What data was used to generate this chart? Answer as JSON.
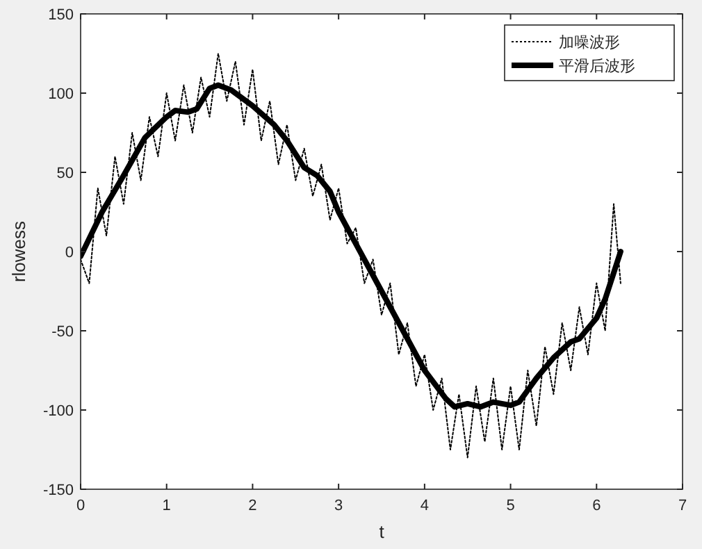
{
  "chart_data": {
    "type": "line",
    "xlabel": "t",
    "ylabel": "rlowess",
    "xlim": [
      0,
      7
    ],
    "xticks": [
      0,
      1,
      2,
      3,
      4,
      5,
      6,
      7
    ],
    "ylim": [
      -150,
      150
    ],
    "yticks": [
      -150,
      -100,
      -50,
      0,
      50,
      100,
      150
    ],
    "grid": false,
    "legend": "top right",
    "series": [
      {
        "name": "加噪波形",
        "color": "#000000",
        "line_style": "dotted",
        "x": [
          0,
          0.1,
          0.2,
          0.3,
          0.4,
          0.5,
          0.6,
          0.7,
          0.8,
          0.9,
          1.0,
          1.1,
          1.2,
          1.3,
          1.4,
          1.5,
          1.6,
          1.7,
          1.8,
          1.9,
          2.0,
          2.1,
          2.2,
          2.3,
          2.4,
          2.5,
          2.6,
          2.7,
          2.8,
          2.9,
          3.0,
          3.1,
          3.2,
          3.3,
          3.4,
          3.5,
          3.6,
          3.7,
          3.8,
          3.9,
          4.0,
          4.1,
          4.2,
          4.3,
          4.4,
          4.5,
          4.6,
          4.7,
          4.8,
          4.9,
          5.0,
          5.1,
          5.2,
          5.3,
          5.4,
          5.5,
          5.6,
          5.7,
          5.8,
          5.9,
          6.0,
          6.1,
          6.2,
          6.28
        ],
        "values": [
          -5,
          -20,
          40,
          10,
          60,
          30,
          75,
          45,
          85,
          60,
          100,
          70,
          105,
          75,
          110,
          85,
          125,
          95,
          120,
          80,
          115,
          70,
          95,
          55,
          80,
          45,
          65,
          35,
          55,
          20,
          40,
          5,
          15,
          -20,
          -5,
          -40,
          -20,
          -65,
          -45,
          -85,
          -65,
          -100,
          -80,
          -125,
          -90,
          -130,
          -85,
          -120,
          -80,
          -125,
          -85,
          -125,
          -75,
          -110,
          -60,
          -90,
          -45,
          -75,
          -35,
          -65,
          -20,
          -50,
          30,
          -20
        ]
      },
      {
        "name": "平滑后波形",
        "color": "#000000",
        "line_style": "solid",
        "x": [
          0,
          0.25,
          0.5,
          0.75,
          1.0,
          1.1,
          1.25,
          1.35,
          1.5,
          1.6,
          1.75,
          2.0,
          2.25,
          2.4,
          2.6,
          2.75,
          2.9,
          3.0,
          3.2,
          3.5,
          3.75,
          4.0,
          4.25,
          4.35,
          4.5,
          4.65,
          4.8,
          5.0,
          5.1,
          5.3,
          5.5,
          5.7,
          5.8,
          6.0,
          6.1,
          6.28
        ],
        "values": [
          -3,
          25,
          48,
          72,
          85,
          89,
          88,
          90,
          103,
          105,
          102,
          92,
          80,
          70,
          53,
          48,
          38,
          25,
          5,
          -25,
          -50,
          -75,
          -93,
          -98,
          -96,
          -98,
          -95,
          -97,
          -95,
          -80,
          -67,
          -57,
          -55,
          -42,
          -30,
          0
        ]
      }
    ]
  }
}
